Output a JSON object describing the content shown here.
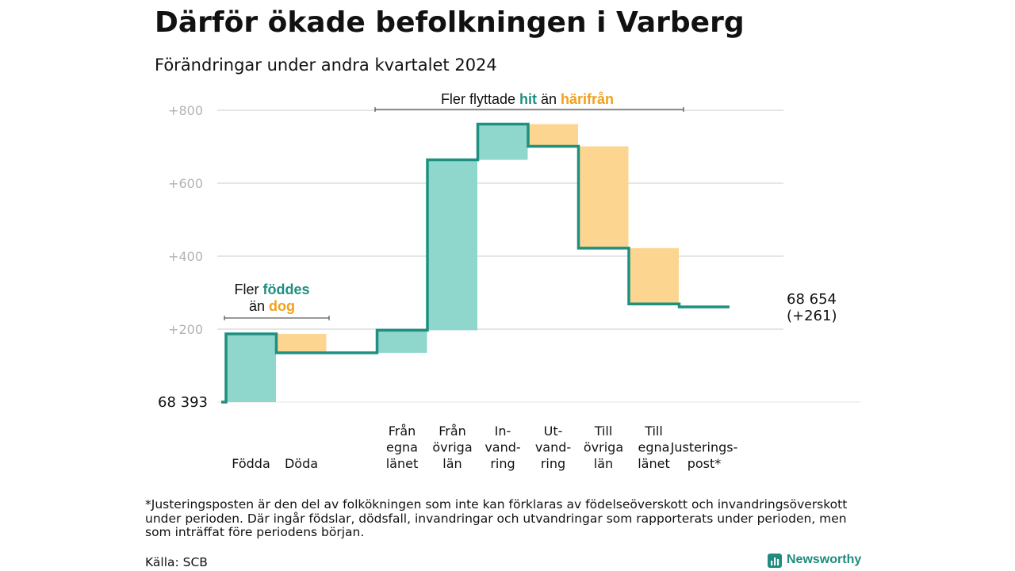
{
  "colors": {
    "increase": "#8fd6cc",
    "decrease": "#fcd690",
    "line": "#1e9080",
    "teal_text": "#1e9080",
    "orange_text": "#f2a01c",
    "grid": "#dddddd",
    "tick": "#b3b3b3"
  },
  "chart_data": {
    "type": "waterfall",
    "title": "Därför ökade befolkningen i Varberg",
    "subtitle": "Förändringar under andra kvartalet 2024",
    "ylim": [
      0,
      800
    ],
    "yticks": [
      {
        "value": 200,
        "label": "+200"
      },
      {
        "value": 400,
        "label": "+400"
      },
      {
        "value": 600,
        "label": "+600"
      },
      {
        "value": 800,
        "label": "+800"
      }
    ],
    "grid": true,
    "start_label": "68  393",
    "end_label": [
      "68 654",
      "(+261)"
    ],
    "steps": [
      {
        "label": [
          "Födda"
        ],
        "change": 187,
        "kind": "increase"
      },
      {
        "label": [
          "Döda"
        ],
        "change": -52,
        "kind": "decrease"
      },
      {
        "label": [],
        "change": 0,
        "kind": "gap"
      },
      {
        "label": [
          "Från",
          "egna",
          "länet"
        ],
        "change": 62,
        "kind": "increase"
      },
      {
        "label": [
          "Från",
          "övriga",
          "län"
        ],
        "change": 467,
        "kind": "increase"
      },
      {
        "label": [
          "In-",
          "vand-",
          "ring"
        ],
        "change": 98,
        "kind": "increase"
      },
      {
        "label": [
          "Ut-",
          "vand-",
          "ring"
        ],
        "change": -61,
        "kind": "decrease"
      },
      {
        "label": [
          "Till",
          "övriga",
          "län"
        ],
        "change": -279,
        "kind": "decrease"
      },
      {
        "label": [
          "Till",
          "egna",
          "länet"
        ],
        "change": -153,
        "kind": "decrease"
      },
      {
        "label": [
          "Justerings-",
          "post*"
        ],
        "change": -8,
        "kind": "adjustment"
      }
    ],
    "annotations": [
      {
        "name": "births-deaths",
        "parts": [
          {
            "line": 0,
            "text": "Fler ",
            "style": "plain"
          },
          {
            "line": 0,
            "text": "föddes",
            "style": "teal"
          },
          {
            "line": 1,
            "text": "än ",
            "style": "plain"
          },
          {
            "line": 1,
            "text": "dog",
            "style": "orange"
          }
        ]
      },
      {
        "name": "migration",
        "parts": [
          {
            "line": 0,
            "text": "Fler flyttade ",
            "style": "plain"
          },
          {
            "line": 0,
            "text": "hit",
            "style": "teal"
          },
          {
            "line": 0,
            "text": "  än ",
            "style": "plain"
          },
          {
            "line": 0,
            "text": "härifrån",
            "style": "orange"
          }
        ]
      }
    ]
  },
  "footnote": "*Justeringsposten är den del av folkökningen som inte kan förklaras av födelseöverskott och invandringsöverskott under perioden. Där ingår födslar, dödsfall, invandringar och utvandringar som rapporterats under perioden, men som inträffat före periodens början.",
  "source": "Källa: SCB",
  "logo_text": "Newsworthy",
  "logo_icon": "bar-chart-icon"
}
